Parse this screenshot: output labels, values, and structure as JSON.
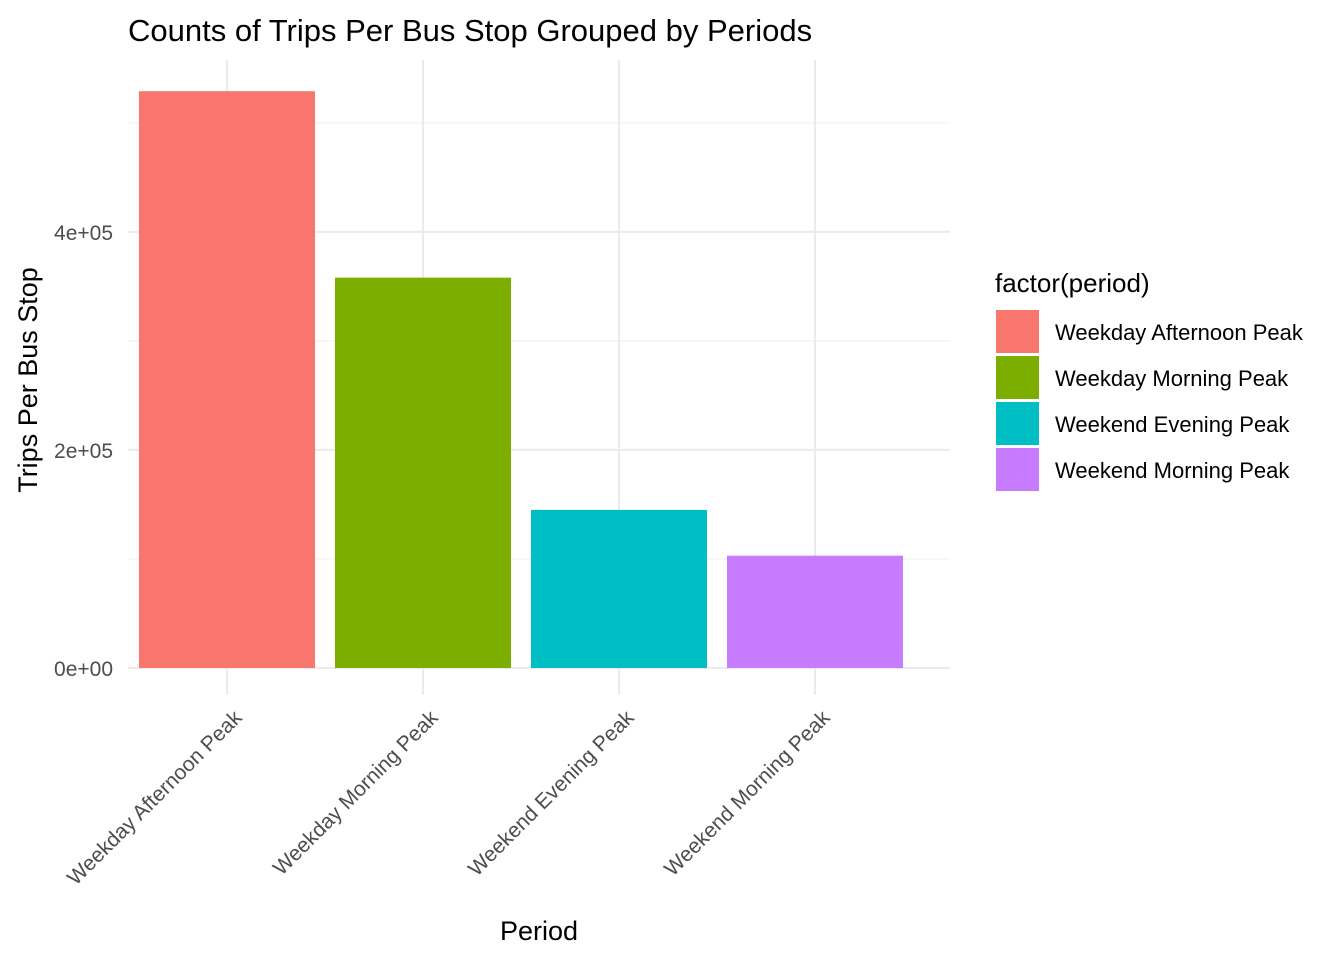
{
  "chart_data": {
    "type": "bar",
    "title": "Counts of Trips Per Bus Stop Grouped by Periods",
    "xlabel": "Period",
    "ylabel": "Trips Per Bus Stop",
    "categories": [
      "Weekday Afternoon Peak",
      "Weekday Morning Peak",
      "Weekend Evening Peak",
      "Weekend Morning Peak"
    ],
    "values": [
      529000,
      358000,
      145000,
      103000
    ],
    "colors": [
      "#F8766D",
      "#7CAE00",
      "#00BFC4",
      "#C77CFF"
    ],
    "ylim": [
      0,
      560000
    ],
    "yticks": [
      0,
      200000,
      400000
    ],
    "ytick_labels": [
      "0e+00",
      "2e+05",
      "4e+05"
    ],
    "grid": true,
    "legend": {
      "title": "factor(period)",
      "position": "right",
      "entries": [
        "Weekday Afternoon Peak",
        "Weekday Morning Peak",
        "Weekend Evening Peak",
        "Weekend Morning Peak"
      ]
    }
  }
}
